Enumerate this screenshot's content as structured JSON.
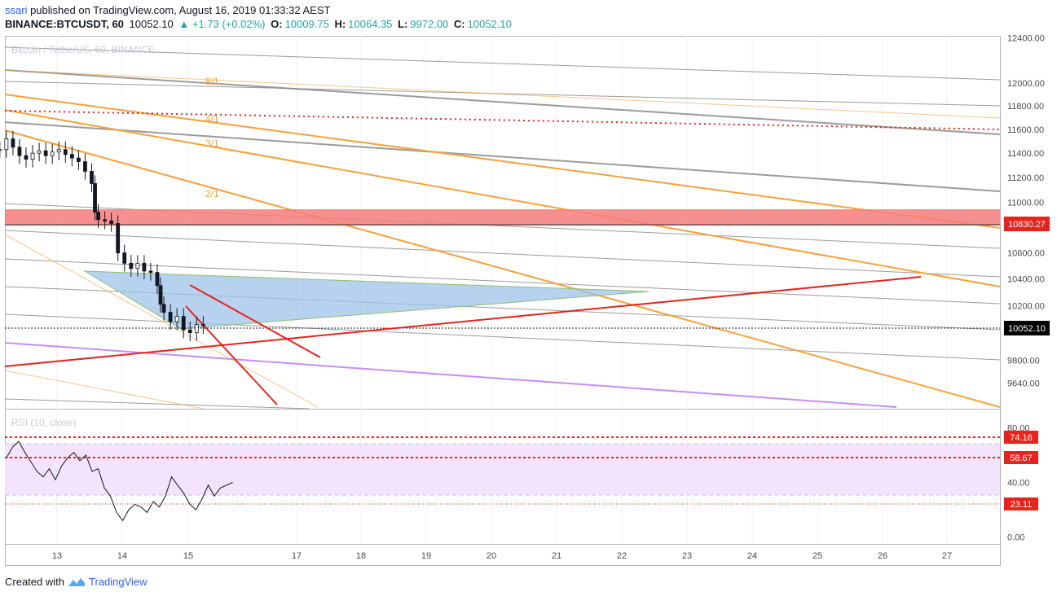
{
  "header": {
    "user": "ssari",
    "published_text": "published on TradingView.com, August 16, 2019 01:33:32 AEST",
    "symbol": "BINANCE:BTCUSDT, 60",
    "last": "10052.10",
    "change": "▲ +1.73 (+0.02%)",
    "o_label": "O:",
    "o": "10009.75",
    "h_label": "H:",
    "h": "10064.35",
    "l_label": "L:",
    "l": "9972.00",
    "c_label": "C:",
    "c": "10052.10"
  },
  "watermark": "Bitcoin / TetherUS, 60, BINANCE",
  "rsi_label": "RSI (10, close)",
  "footer": {
    "created_with": "Created with",
    "brand": "TradingView"
  },
  "colors": {
    "grid": "#e1e3ea",
    "gray_line": "#8a8a8a",
    "orange": "#f7a13a",
    "red": "#e8231c",
    "red_zone": "#f77b7b",
    "triangle": "#9fc3e8",
    "purple": "#c98cf5",
    "rsi_band": "#f3e3fc",
    "candle_up": "#26a69a",
    "candle_down": "#ef5350"
  },
  "chart_data": [
    {
      "type": "line",
      "title": "Bitcoin / TetherUS, 60, BINANCE",
      "x_tick_labels": [
        "13",
        "14",
        "15",
        "17",
        "18",
        "19",
        "20",
        "21",
        "22",
        "23",
        "24",
        "25",
        "26",
        "27"
      ],
      "y_tick_labels": [
        "12400.00",
        "12000.00",
        "11800.00",
        "11600.00",
        "11400.00",
        "11200.00",
        "11000.00",
        "10600.00",
        "10400.00",
        "10200.00",
        "9800.00",
        "9640.00"
      ],
      "ylim": [
        9460,
        12420
      ],
      "log_scale": true,
      "series": [
        {
          "values_x_days": [
            12.6,
            12.7,
            12.8,
            12.9,
            13.0,
            13.1,
            13.2,
            13.3,
            13.4,
            13.5,
            13.6,
            13.7,
            13.8,
            13.9,
            14.0,
            14.05,
            14.1,
            14.2,
            14.3,
            14.4,
            14.5,
            14.6,
            14.7,
            14.8,
            14.9,
            15.0,
            15.05,
            15.1,
            15.2,
            15.3,
            15.4,
            15.5,
            15.6,
            15.7
          ],
          "close": [
            11430,
            11520,
            11450,
            11380,
            11350,
            11400,
            11420,
            11380,
            11410,
            11430,
            11390,
            11360,
            11330,
            11250,
            11150,
            10920,
            10860,
            10850,
            10830,
            10600,
            10520,
            10480,
            10520,
            10460,
            10450,
            10350,
            10210,
            10150,
            10080,
            10120,
            10020,
            10000,
            10060,
            10052
          ]
        }
      ],
      "price_labels": [
        "10830.27",
        "10052.10"
      ],
      "annotations": [
        "8/1",
        "4/1",
        "3/1",
        "2/1"
      ],
      "grid": true
    },
    {
      "type": "line",
      "title": "RSI (10, close)",
      "y_tick_labels": [
        "80.00",
        "40.00",
        "0.00"
      ],
      "ylim": [
        -5,
        88
      ],
      "levels": [
        "74.16",
        "58.67",
        "23.11"
      ],
      "series": [
        {
          "values_x_days": [
            12.0,
            12.1,
            12.2,
            12.3,
            12.4,
            12.5,
            12.6,
            12.7,
            12.8,
            12.9,
            13.0,
            13.1,
            13.2,
            13.3,
            13.4,
            13.5,
            13.6,
            13.7,
            13.8,
            13.9,
            14.0,
            14.1,
            14.2,
            14.3,
            14.4,
            14.5,
            14.6,
            14.7,
            14.8,
            14.9,
            15.0,
            15.1,
            15.2,
            15.3,
            15.4,
            15.5,
            15.6,
            15.7
          ],
          "values": [
            58,
            66,
            70,
            62,
            55,
            48,
            44,
            50,
            42,
            52,
            58,
            62,
            56,
            60,
            48,
            50,
            36,
            30,
            18,
            12,
            20,
            24,
            22,
            18,
            26,
            22,
            30,
            44,
            38,
            32,
            24,
            20,
            28,
            38,
            30,
            36,
            38,
            40
          ]
        }
      ],
      "grid": true
    }
  ]
}
